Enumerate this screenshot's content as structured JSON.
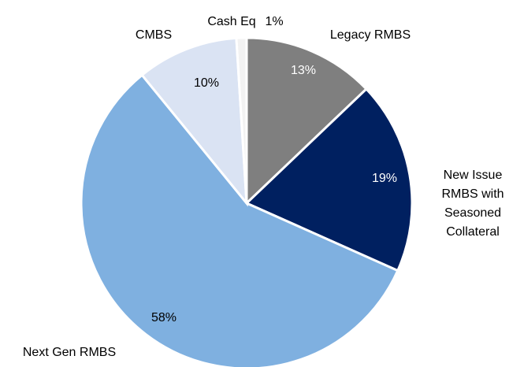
{
  "chart_data": {
    "type": "pie",
    "categories": [
      "Legacy RMBS",
      "New Issue RMBS with Seasoned Collateral",
      "Next Gen RMBS",
      "CMBS",
      "Cash Eq"
    ],
    "values": [
      13,
      19,
      58,
      10,
      1
    ],
    "value_labels": [
      "13%",
      "19%",
      "58%",
      "10%",
      "1%"
    ],
    "colors": [
      "#7f7f7f",
      "#002060",
      "#7fb0e0",
      "#dae3f3",
      "#f2f2f2"
    ]
  }
}
